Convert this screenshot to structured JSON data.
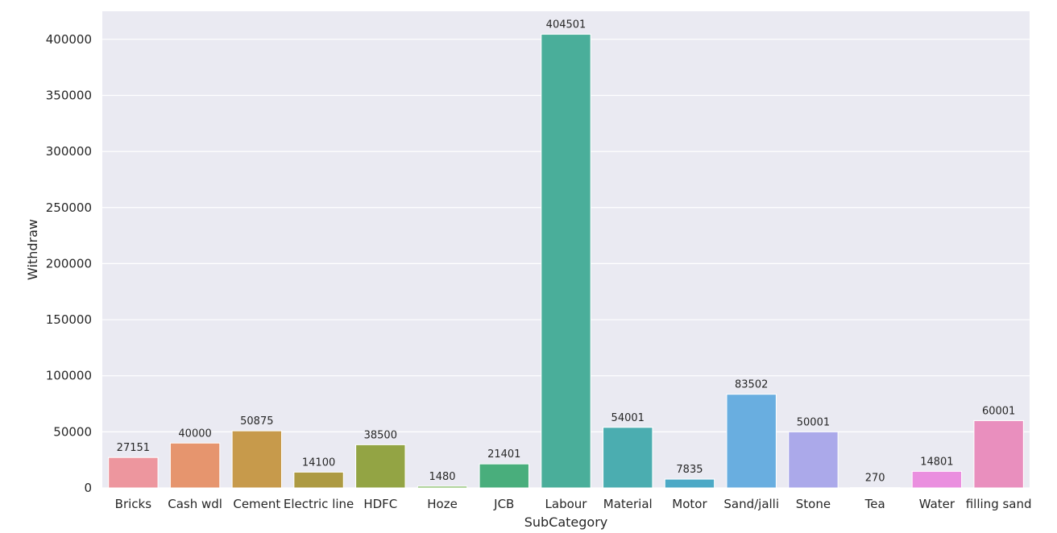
{
  "chart_data": {
    "type": "bar",
    "title": "",
    "xlabel": "SubCategory",
    "ylabel": "Withdraw",
    "categories": [
      "Bricks",
      "Cash wdl",
      "Cement",
      "Electric line",
      "HDFC",
      "Hoze",
      "JCB",
      "Labour",
      "Material",
      "Motor",
      "Sand/jalli",
      "Stone",
      "Tea",
      "Water",
      "filling sand"
    ],
    "values": [
      27151,
      40000,
      50875,
      14100,
      38500,
      1480,
      21401,
      404501,
      54001,
      7835,
      83502,
      50001,
      270,
      14801,
      60001
    ],
    "data_labels": [
      "27151",
      "40000",
      "50875",
      "14100",
      "38500",
      "1480",
      "21401",
      "404501",
      "54001",
      "7835",
      "83502",
      "50001",
      "270",
      "14801",
      "60001"
    ],
    "colors": [
      "#ed969e",
      "#e6956e",
      "#c79a4b",
      "#ad9a42",
      "#93a444",
      "#6baf46",
      "#49ae7c",
      "#4aae9a",
      "#4badb0",
      "#4ca9c6",
      "#69aee0",
      "#aba9ea",
      "#d49fe9",
      "#ea8fdf",
      "#e98fbe"
    ],
    "ylim": [
      0,
      425000
    ],
    "yticks": [
      0,
      50000,
      100000,
      150000,
      200000,
      250000,
      300000,
      350000,
      400000
    ],
    "ytick_labels": [
      "0",
      "50000",
      "100000",
      "150000",
      "200000",
      "250000",
      "300000",
      "350000",
      "400000"
    ],
    "grid": true,
    "background": "#eaeaf2",
    "grid_color": "#ffffff"
  }
}
